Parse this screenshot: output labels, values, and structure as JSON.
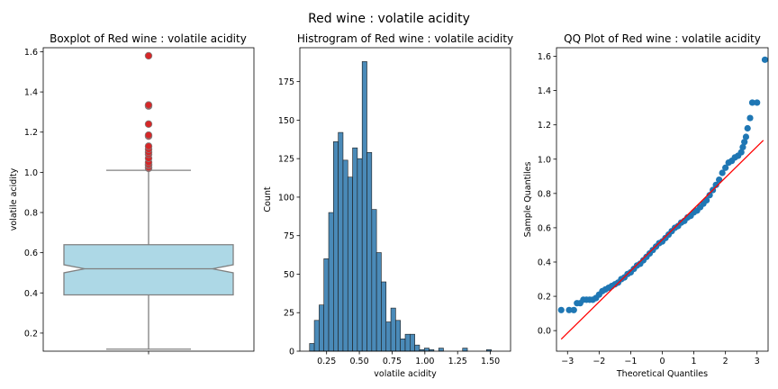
{
  "suptitle": "Red wine : volatile acidity",
  "chart_data": [
    {
      "type": "box",
      "title": "Boxplot of Red wine : volatile acidity",
      "xlabel": "",
      "ylabel": "volatile acidity",
      "ylim": [
        0.11,
        1.62
      ],
      "yticks": [
        0.2,
        0.4,
        0.6,
        0.8,
        1.0,
        1.2,
        1.4,
        1.6
      ],
      "notched": true,
      "box_color": "#add8e6",
      "edge_color": "#808080",
      "whisker_low": 0.12,
      "q1": 0.39,
      "median": 0.52,
      "q3": 0.64,
      "whisker_high": 1.01,
      "notch_low": 0.5,
      "notch_high": 0.54,
      "outlier_color": "#d62728",
      "outliers": [
        1.02,
        1.025,
        1.035,
        1.04,
        1.05,
        1.07,
        1.09,
        1.1,
        1.115,
        1.13,
        1.18,
        1.185,
        1.24,
        1.33,
        1.335,
        1.58
      ]
    },
    {
      "type": "histogram",
      "title": "Histrogram of Red wine : volatile acidity",
      "xlabel": "volatile acidity",
      "ylabel": "Count",
      "xlim": [
        0.046,
        1.654
      ],
      "ylim": [
        0,
        197
      ],
      "xticks": [
        0.25,
        0.5,
        0.75,
        1.0,
        1.25,
        1.5
      ],
      "xtick_labels": [
        "0.25",
        "0.50",
        "0.75",
        "1.00",
        "1.25",
        "1.50"
      ],
      "yticks": [
        0,
        25,
        50,
        75,
        100,
        125,
        150,
        175
      ],
      "bar_color": "#4a8ab8",
      "bin_start": 0.12,
      "bin_width": 0.0365,
      "counts": [
        5,
        20,
        30,
        60,
        90,
        136,
        142,
        124,
        113,
        132,
        125,
        188,
        129,
        92,
        64,
        45,
        19,
        28,
        20,
        8,
        11,
        11,
        4,
        1,
        2,
        1,
        0,
        2,
        0,
        0,
        0,
        0,
        2,
        0,
        0,
        0,
        0,
        1
      ]
    },
    {
      "type": "scatter",
      "title": "QQ Plot of Red wine : volatile acidity",
      "xlabel": "Theoretical Quantiles",
      "ylabel": "Sample Quantiles",
      "xlim": [
        -3.35,
        3.35
      ],
      "ylim": [
        -0.12,
        1.65
      ],
      "xticks": [
        -3,
        -2,
        -1,
        0,
        1,
        2,
        3
      ],
      "yticks": [
        0.0,
        0.2,
        0.4,
        0.6,
        0.8,
        1.0,
        1.2,
        1.4,
        1.6
      ],
      "point_color": "#1f77b4",
      "line_color": "#ff0000",
      "reference_line": [
        [
          -3.2,
          -0.05
        ],
        [
          3.2,
          1.11
        ]
      ],
      "points": [
        [
          -3.2,
          0.12
        ],
        [
          -2.95,
          0.12
        ],
        [
          -2.8,
          0.12
        ],
        [
          -2.7,
          0.16
        ],
        [
          -2.6,
          0.16
        ],
        [
          -2.5,
          0.18
        ],
        [
          -2.4,
          0.18
        ],
        [
          -2.3,
          0.18
        ],
        [
          -2.2,
          0.18
        ],
        [
          -2.1,
          0.19
        ],
        [
          -2.0,
          0.21
        ],
        [
          -1.9,
          0.23
        ],
        [
          -1.8,
          0.24
        ],
        [
          -1.7,
          0.25
        ],
        [
          -1.6,
          0.26
        ],
        [
          -1.5,
          0.27
        ],
        [
          -1.4,
          0.28
        ],
        [
          -1.3,
          0.3
        ],
        [
          -1.2,
          0.31
        ],
        [
          -1.1,
          0.33
        ],
        [
          -1.0,
          0.34
        ],
        [
          -0.9,
          0.36
        ],
        [
          -0.8,
          0.38
        ],
        [
          -0.7,
          0.39
        ],
        [
          -0.6,
          0.41
        ],
        [
          -0.5,
          0.43
        ],
        [
          -0.4,
          0.45
        ],
        [
          -0.3,
          0.47
        ],
        [
          -0.2,
          0.49
        ],
        [
          -0.1,
          0.51
        ],
        [
          0.0,
          0.52
        ],
        [
          0.1,
          0.54
        ],
        [
          0.2,
          0.56
        ],
        [
          0.3,
          0.58
        ],
        [
          0.4,
          0.6
        ],
        [
          0.5,
          0.61
        ],
        [
          0.6,
          0.63
        ],
        [
          0.7,
          0.64
        ],
        [
          0.8,
          0.66
        ],
        [
          0.9,
          0.67
        ],
        [
          1.0,
          0.69
        ],
        [
          1.1,
          0.7
        ],
        [
          1.2,
          0.72
        ],
        [
          1.3,
          0.74
        ],
        [
          1.4,
          0.76
        ],
        [
          1.5,
          0.79
        ],
        [
          1.6,
          0.82
        ],
        [
          1.7,
          0.85
        ],
        [
          1.8,
          0.88
        ],
        [
          1.9,
          0.92
        ],
        [
          2.0,
          0.95
        ],
        [
          2.1,
          0.98
        ],
        [
          2.2,
          0.99
        ],
        [
          2.3,
          1.01
        ],
        [
          2.4,
          1.02
        ],
        [
          2.5,
          1.04
        ],
        [
          2.55,
          1.07
        ],
        [
          2.6,
          1.1
        ],
        [
          2.65,
          1.13
        ],
        [
          2.7,
          1.18
        ],
        [
          2.78,
          1.24
        ],
        [
          2.85,
          1.33
        ],
        [
          3.0,
          1.33
        ],
        [
          3.25,
          1.58
        ]
      ]
    }
  ]
}
